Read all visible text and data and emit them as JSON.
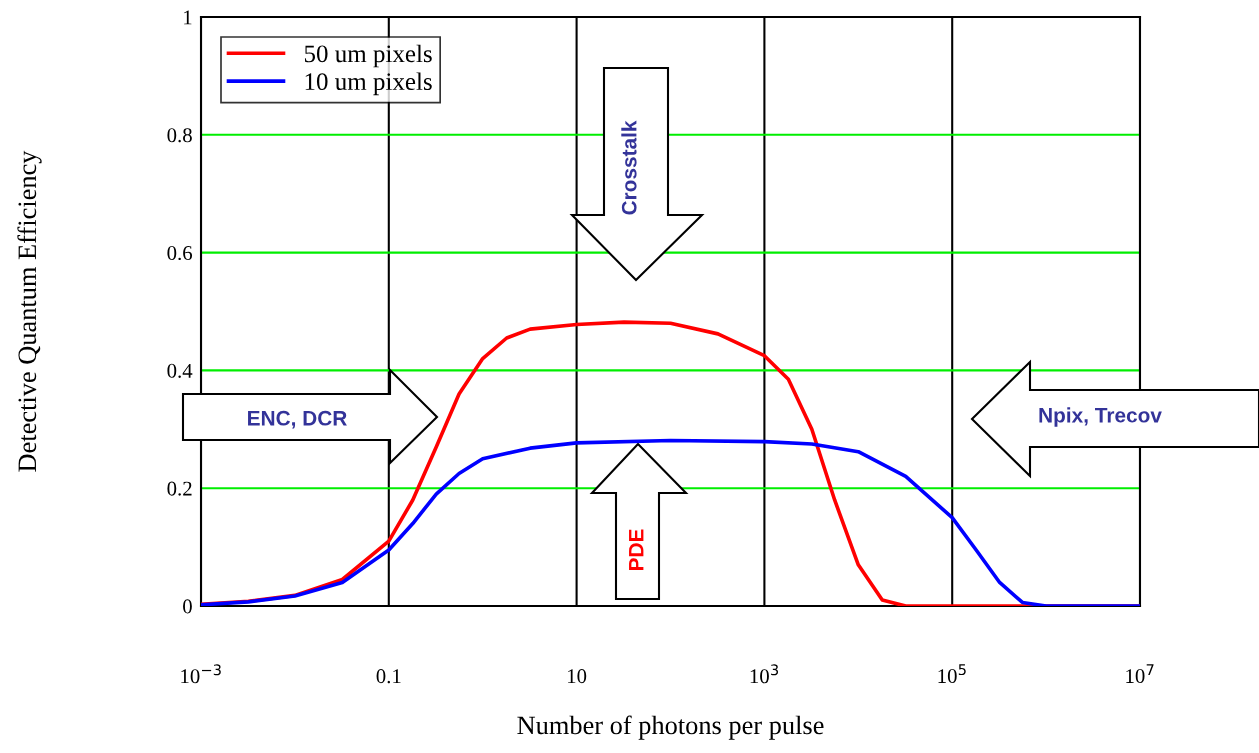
{
  "chart_data": {
    "type": "line",
    "xlabel": "Number of photons per pulse",
    "ylabel": "Detective Quantum Efficiency",
    "log": "x",
    "xlim": [
      0.001,
      10000000.0
    ],
    "xticks": [
      {
        "value": 0.001,
        "label": "10$^{−3}$"
      },
      0.1,
      10,
      {
        "value": 1000,
        "label": "10$^{3}$"
      },
      {
        "value": 100000,
        "label": "10$^{5}$"
      },
      {
        "value": 10000000,
        "label": "10$^{7}$"
      }
    ],
    "ylim": [
      0,
      1
    ],
    "yticks": [
      0,
      0.2,
      0.4,
      0.6,
      0.8,
      1
    ],
    "grid": true,
    "legend": "top left",
    "line_style": "solid",
    "marker": "none",
    "series": [
      {
        "name": "50 um pixels",
        "color": "#ff0000",
        "x": [
          0.001,
          0.0032,
          0.01,
          0.032,
          0.1,
          0.18,
          0.32,
          0.56,
          1,
          1.8,
          3.2,
          10,
          32,
          100,
          320,
          1000,
          1800,
          3200,
          5600,
          10000,
          18000,
          32000,
          10000000
        ],
        "values": [
          0.003,
          0.008,
          0.018,
          0.045,
          0.11,
          0.18,
          0.27,
          0.36,
          0.42,
          0.455,
          0.47,
          0.478,
          0.482,
          0.48,
          0.462,
          0.425,
          0.385,
          0.3,
          0.18,
          0.07,
          0.01,
          0,
          0
        ]
      },
      {
        "name": "10 um pixels",
        "color": "#0000ff",
        "x": [
          0.001,
          0.0032,
          0.01,
          0.032,
          0.1,
          0.18,
          0.32,
          0.56,
          1,
          3.2,
          10,
          100,
          1000,
          3200,
          10000,
          32000,
          100000,
          180000,
          320000,
          560000,
          1000000,
          10000000
        ],
        "values": [
          0.002,
          0.007,
          0.017,
          0.04,
          0.095,
          0.14,
          0.19,
          0.225,
          0.25,
          0.268,
          0.277,
          0.281,
          0.279,
          0.275,
          0.262,
          0.22,
          0.15,
          0.095,
          0.04,
          0.006,
          0,
          0
        ]
      }
    ],
    "annotations": [
      "ENC, DCR",
      "Crosstalk",
      "PDE",
      "Npix, Trecov"
    ]
  }
}
